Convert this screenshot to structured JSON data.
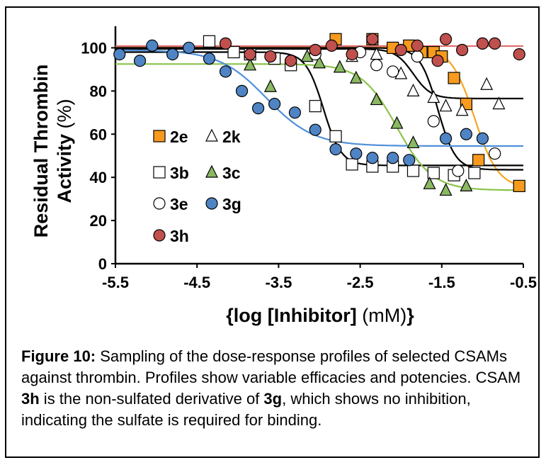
{
  "chart_data": {
    "type": "scatter",
    "title": "",
    "ylabel_line1": "Residual Thrombin",
    "ylabel_line2_bold": "Activity",
    "ylabel_line2_unit": "(%)",
    "xlabel_bold_prefix": "{log [Inhibitor]",
    "xlabel_unit": "(mM)",
    "xlabel_bold_suffix": "}",
    "xlim": [
      -5.5,
      -0.5
    ],
    "ylim": [
      0,
      110
    ],
    "xticks": [
      "-5.5",
      "-4.5",
      "-3.5",
      "-2.5",
      "-1.5",
      "-0.5"
    ],
    "yticks": [
      "0",
      "20",
      "40",
      "60",
      "80",
      "100"
    ],
    "grid": false,
    "legend_position": "left-center",
    "series": [
      {
        "name": "2e",
        "marker": "square",
        "fill": "#f79a1e",
        "stroke": "#000000",
        "curve": "#f5a623",
        "fit": {
          "top": 100.5,
          "bottom": 35.0,
          "logIC50": -1.1,
          "hill": 3.0
        },
        "points": [
          [
            -2.8,
            104
          ],
          [
            -2.35,
            104
          ],
          [
            -2.1,
            100
          ],
          [
            -1.9,
            101
          ],
          [
            -1.75,
            98
          ],
          [
            -1.6,
            98
          ],
          [
            -1.5,
            96
          ],
          [
            -1.35,
            86
          ],
          [
            -1.2,
            74
          ],
          [
            -1.05,
            48
          ],
          [
            -0.55,
            36
          ]
        ]
      },
      {
        "name": "2k",
        "marker": "triangle-open",
        "fill": "#ffffff",
        "stroke": "#000000",
        "curve": "#000000",
        "fit": {
          "top": 99.5,
          "bottom": 76.5,
          "logIC50": -1.85,
          "hill": 4.0
        },
        "points": [
          [
            -2.6,
            96
          ],
          [
            -2.3,
            97
          ],
          [
            -2.0,
            88
          ],
          [
            -1.85,
            80
          ],
          [
            -1.6,
            77
          ],
          [
            -1.45,
            73
          ],
          [
            -1.25,
            71
          ],
          [
            -0.95,
            83
          ],
          [
            -0.8,
            74
          ]
        ]
      },
      {
        "name": "3b",
        "marker": "square-open",
        "fill": "#ffffff",
        "stroke": "#000000",
        "curve": "#000000",
        "fit": {
          "top": 98.0,
          "bottom": 45.5,
          "logIC50": -2.95,
          "hill": 4.0
        },
        "points": [
          [
            -4.35,
            103
          ],
          [
            -4.05,
            98
          ],
          [
            -3.85,
            97
          ],
          [
            -3.55,
            95
          ],
          [
            -3.35,
            92
          ],
          [
            -3.05,
            73
          ],
          [
            -2.8,
            59
          ],
          [
            -2.6,
            46
          ],
          [
            -2.35,
            45
          ],
          [
            -2.1,
            45
          ],
          [
            -1.85,
            43
          ],
          [
            -1.6,
            42
          ],
          [
            -1.35,
            41
          ],
          [
            -1.1,
            42
          ]
        ]
      },
      {
        "name": "3c",
        "marker": "triangle",
        "fill": "#8bb863",
        "stroke": "#000000",
        "curve": "#8bc34a",
        "fit": {
          "top": 92.5,
          "bottom": 34.0,
          "logIC50": -2.05,
          "hill": 2.0
        },
        "points": [
          [
            -3.85,
            92
          ],
          [
            -3.6,
            82
          ],
          [
            -3.15,
            96
          ],
          [
            -3.0,
            93
          ],
          [
            -2.75,
            91
          ],
          [
            -2.55,
            86
          ],
          [
            -2.3,
            76
          ],
          [
            -2.05,
            65
          ],
          [
            -1.85,
            56
          ],
          [
            -1.65,
            37
          ],
          [
            -1.45,
            34
          ],
          [
            -1.2,
            36
          ]
        ]
      },
      {
        "name": "3e",
        "marker": "circle-open",
        "fill": "#ffffff",
        "stroke": "#000000",
        "curve": "#000000",
        "fit": {
          "top": 100.0,
          "bottom": 43.5,
          "logIC50": -1.55,
          "hill": 4.0
        },
        "points": [
          [
            -3.05,
            97
          ],
          [
            -2.5,
            98
          ],
          [
            -2.3,
            92
          ],
          [
            -2.1,
            89
          ],
          [
            -1.8,
            96
          ],
          [
            -1.6,
            66
          ],
          [
            -1.3,
            43
          ],
          [
            -0.85,
            51
          ]
        ]
      },
      {
        "name": "3g",
        "marker": "circle",
        "fill": "#4f84c4",
        "stroke": "#000000",
        "curve": "#4f90d9",
        "fit": {
          "top": 99.0,
          "bottom": 54.5,
          "logIC50": -3.65,
          "hill": 1.5
        },
        "points": [
          [
            -5.45,
            97
          ],
          [
            -5.2,
            94
          ],
          [
            -5.05,
            101
          ],
          [
            -4.8,
            97
          ],
          [
            -4.6,
            100
          ],
          [
            -4.35,
            95
          ],
          [
            -4.15,
            89
          ],
          [
            -3.95,
            80
          ],
          [
            -3.75,
            72
          ],
          [
            -3.55,
            74
          ],
          [
            -3.3,
            70
          ],
          [
            -3.05,
            62
          ],
          [
            -2.8,
            53
          ],
          [
            -2.55,
            51
          ],
          [
            -2.35,
            49
          ],
          [
            -2.1,
            49
          ],
          [
            -1.9,
            48
          ],
          [
            -1.45,
            58
          ],
          [
            -1.2,
            60
          ],
          [
            -1.0,
            58
          ]
        ]
      },
      {
        "name": "3h",
        "marker": "circle",
        "fill": "#c0504d",
        "stroke": "#000000",
        "curve": "#e07070",
        "fit": {
          "top": 100.8,
          "bottom": 100.8,
          "logIC50": -2.0,
          "hill": 1.0
        },
        "points": [
          [
            -4.15,
            102
          ],
          [
            -3.85,
            97
          ],
          [
            -3.6,
            96
          ],
          [
            -3.35,
            94
          ],
          [
            -3.05,
            99
          ],
          [
            -2.85,
            101
          ],
          [
            -2.6,
            97
          ],
          [
            -2.35,
            104
          ],
          [
            -2.0,
            99
          ],
          [
            -1.8,
            101
          ],
          [
            -1.55,
            94
          ],
          [
            -1.45,
            104
          ],
          [
            -1.25,
            99
          ],
          [
            -1.0,
            102
          ],
          [
            -0.85,
            102
          ],
          [
            -0.55,
            97
          ]
        ]
      }
    ]
  },
  "caption": {
    "figure_label": "Figure 10:",
    "text_1": " Sampling of the dose-response profiles of selected CSAMs against thrombin. Profiles show variable efficacies and potencies. CSAM ",
    "bold_1": "3h",
    "text_2": " is the non-sulfated derivative of ",
    "bold_2": "3g",
    "text_3": ", which shows no inhibition, indicating the sulfate is required for binding."
  }
}
